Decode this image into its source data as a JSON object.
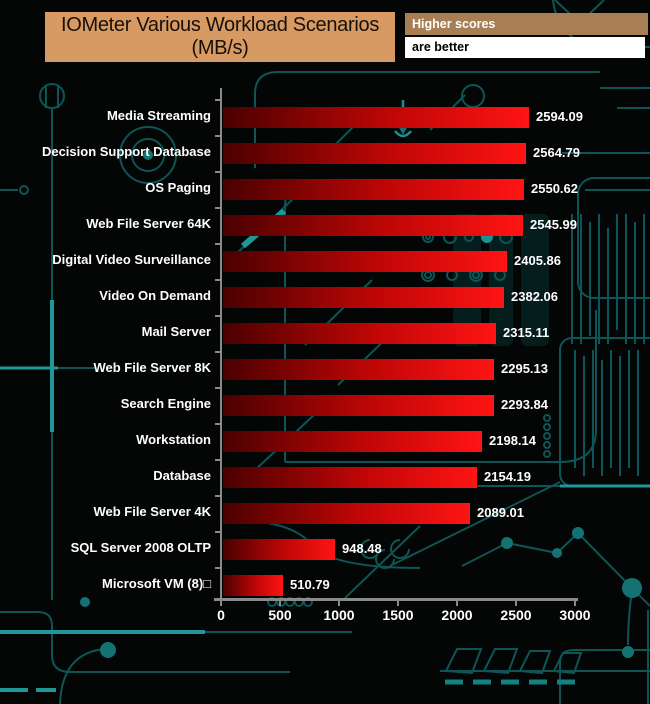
{
  "header": {
    "title_line1": "IOMeter Various Workload Scenarios",
    "title_line2": "(MB/s)",
    "note_line1": "Higher scores",
    "note_line2": "are better"
  },
  "chart_data": {
    "type": "bar",
    "orientation": "horizontal",
    "title": "IOMeter Various Workload Scenarios (MB/s)",
    "categories": [
      "Media Streaming",
      "Decision Support Database",
      "OS Paging",
      "Web File Server 64K",
      "Digital Video Surveillance",
      "Video On Demand",
      "Mail Server",
      "Web File Server 8K",
      "Search Engine",
      "Workstation",
      "Database",
      "Web File Server 4K",
      "SQL Server 2008 OLTP",
      "Microsoft VM (8)□"
    ],
    "values": [
      2594.09,
      2564.79,
      2550.62,
      2545.99,
      2405.86,
      2382.06,
      2315.11,
      2295.13,
      2293.84,
      2198.14,
      2154.19,
      2089.01,
      948.48,
      510.79
    ],
    "xlim": [
      0,
      3000
    ],
    "xticks": [
      0,
      500,
      1000,
      1500,
      2000,
      2500,
      3000
    ],
    "grid": false,
    "legend_position": "none",
    "value_labels": true
  },
  "colors": {
    "background": "#040505",
    "title_bg": "#d79a62",
    "title_text": "#17100a",
    "note_top_bg": "#a87e55",
    "note_top_text": "#ffffff",
    "note_bottom_bg": "#ffffff",
    "note_bottom_text": "#000000",
    "bar_dark": "#4a0000",
    "bar_mid": "#c00606",
    "bar_bright": "#ff1414",
    "axis": "#8a8a8a",
    "text": "#ffffff",
    "circuit_dim": "#0d5556",
    "circuit_bright": "#219898",
    "circuit_fill": "#157272"
  }
}
